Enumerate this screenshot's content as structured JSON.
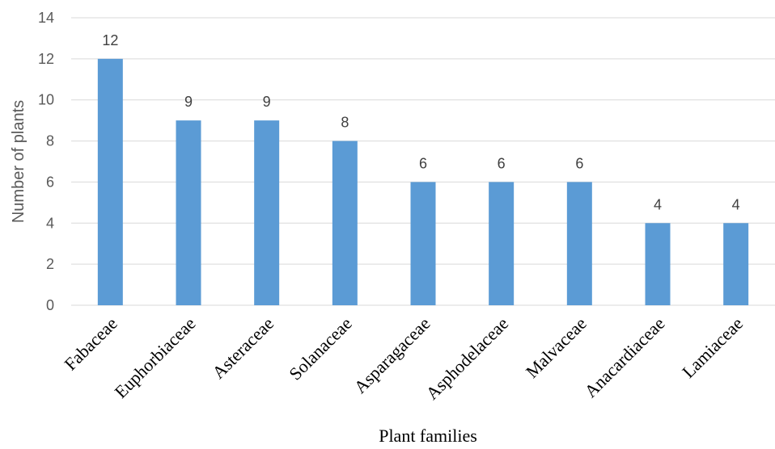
{
  "chart_data": {
    "type": "bar",
    "categories": [
      "Fabaceae",
      "Euphorbiaceae",
      "Asteraceae",
      "Solanaceae",
      "Asparagaceae",
      "Asphodelaceae",
      "Malvaceae",
      "Anacardiaceae",
      "Lamiaceae"
    ],
    "values": [
      12,
      9,
      9,
      8,
      6,
      6,
      6,
      4,
      4
    ],
    "data_labels": [
      "12",
      "9",
      "9",
      "8",
      "6",
      "6",
      "6",
      "4",
      "4"
    ],
    "title": "",
    "xlabel": "Plant families",
    "ylabel": "Number of plants",
    "ylim": [
      0,
      14
    ],
    "yticks": [
      "0",
      "2",
      "4",
      "6",
      "8",
      "10",
      "12",
      "14"
    ],
    "grid": "horizontal",
    "legend": "none",
    "bar_color": "#5b9bd5",
    "grid_color": "#d9d9d9"
  }
}
